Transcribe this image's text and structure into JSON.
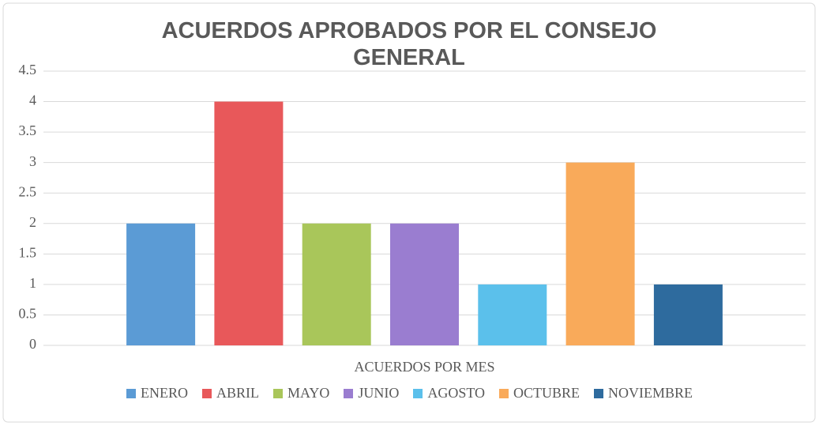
{
  "chart_data": {
    "type": "bar",
    "title": "ACUERDOS APROBADOS POR EL CONSEJO GENERAL",
    "categories": [
      "ACUERDOS POR MES"
    ],
    "series": [
      {
        "name": "ENERO",
        "color": "#5b9bd5",
        "values": [
          2
        ]
      },
      {
        "name": "ABRIL",
        "color": "#e8585a",
        "values": [
          4
        ]
      },
      {
        "name": "MAYO",
        "color": "#a9c65a",
        "values": [
          2
        ]
      },
      {
        "name": "JUNIO",
        "color": "#9a7dd0",
        "values": [
          2
        ]
      },
      {
        "name": "AGOSTO",
        "color": "#5bc0eb",
        "values": [
          1
        ]
      },
      {
        "name": "OCTUBRE",
        "color": "#f9aa5a",
        "values": [
          3
        ]
      },
      {
        "name": "NOVIEMBRE",
        "color": "#2e6b9e",
        "values": [
          1
        ]
      }
    ],
    "ylim": [
      0,
      4.5
    ],
    "yticks": [
      0,
      0.5,
      1,
      1.5,
      2,
      2.5,
      3,
      3.5,
      4,
      4.5
    ],
    "grid": true,
    "legend": "bottom"
  }
}
